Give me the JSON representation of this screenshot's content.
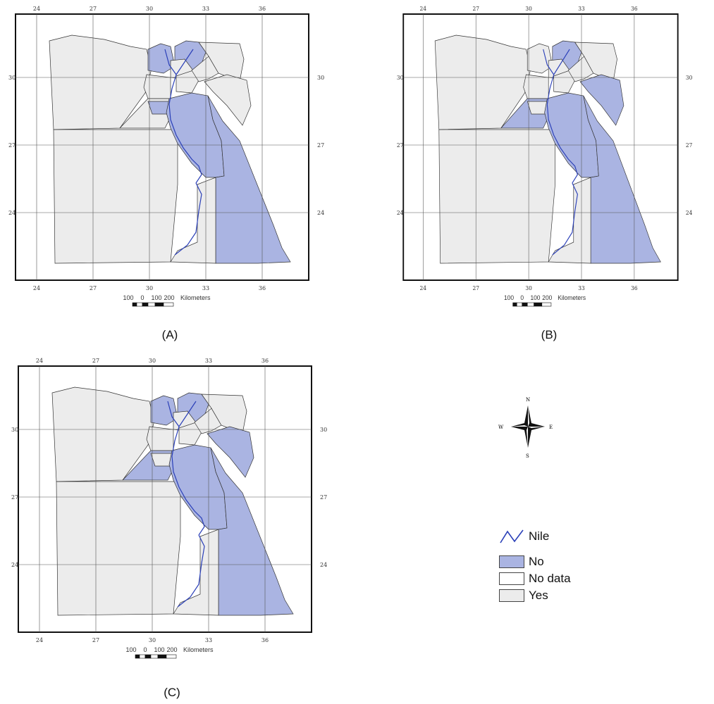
{
  "panels": [
    {
      "id": "A",
      "caption": "(A)",
      "no_regions": [
        "delta-west",
        "delta-east",
        "fayoum",
        "nile-valley",
        "red-sea"
      ]
    },
    {
      "id": "B",
      "caption": "(B)",
      "no_regions": [
        "delta-east",
        "giza-west",
        "sinai-central",
        "nile-valley",
        "red-sea"
      ]
    },
    {
      "id": "C",
      "caption": "(C)",
      "no_regions": [
        "delta-west",
        "delta-east",
        "giza-west",
        "sinai-central",
        "nile-valley",
        "red-sea"
      ]
    }
  ],
  "axis_ticks": {
    "longitude": [
      "24",
      "27",
      "30",
      "33",
      "36"
    ],
    "latitude": [
      "30",
      "27",
      "24"
    ]
  },
  "scale_bar": {
    "labels": [
      "100",
      "0",
      "100",
      "200"
    ],
    "unit": "Kilometers"
  },
  "compass": {
    "n": "N",
    "s": "S",
    "e": "E",
    "w": "W"
  },
  "legend": {
    "nile": "Nile",
    "no": "No",
    "no_data": "No data",
    "yes": "Yes"
  },
  "colors": {
    "no": "#aab4e2",
    "yes": "#ececec",
    "no_data": "#ffffff",
    "nile": "#2a3fb8",
    "border": "#333333",
    "grid": "#555555"
  }
}
